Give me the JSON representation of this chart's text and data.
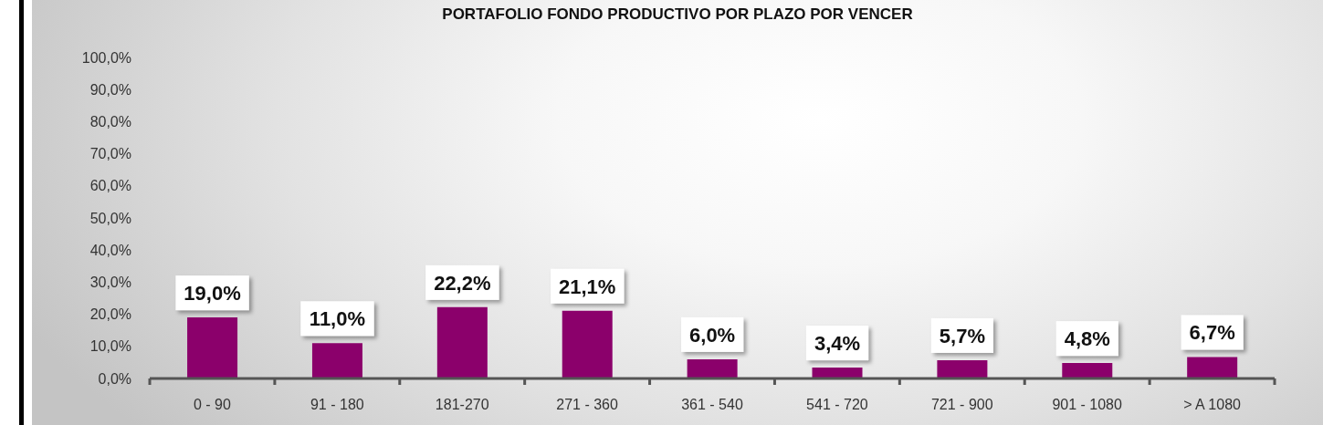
{
  "chart_data": {
    "type": "bar",
    "title": "PORTAFOLIO FONDO PRODUCTIVO POR PLAZO POR VENCER",
    "categories": [
      "0 - 90",
      "91 - 180",
      "181-270",
      "271 - 360",
      "361 - 540",
      "541 - 720",
      "721 - 900",
      "901 - 1080",
      "> A 1080"
    ],
    "values": [
      19.0,
      11.0,
      22.2,
      21.1,
      6.0,
      3.4,
      5.7,
      4.8,
      6.7
    ],
    "value_labels": [
      "19,0%",
      "11,0%",
      "22,2%",
      "21,1%",
      "6,0%",
      "3,4%",
      "5,7%",
      "4,8%",
      "6,7%"
    ],
    "color": "#8b006b",
    "ylim": [
      0,
      100
    ],
    "yticks": [
      {
        "value": 0,
        "label": "0,0%"
      },
      {
        "value": 10,
        "label": "10,0%"
      },
      {
        "value": 20,
        "label": "20,0%"
      },
      {
        "value": 30,
        "label": "30,0%"
      },
      {
        "value": 40,
        "label": "40,0%"
      },
      {
        "value": 50,
        "label": "50,0%"
      },
      {
        "value": 60,
        "label": "60,0%"
      },
      {
        "value": 70,
        "label": "70,0%"
      },
      {
        "value": 80,
        "label": "80,0%"
      },
      {
        "value": 90,
        "label": "90,0%"
      },
      {
        "value": 100,
        "label": "100,0%"
      }
    ]
  }
}
